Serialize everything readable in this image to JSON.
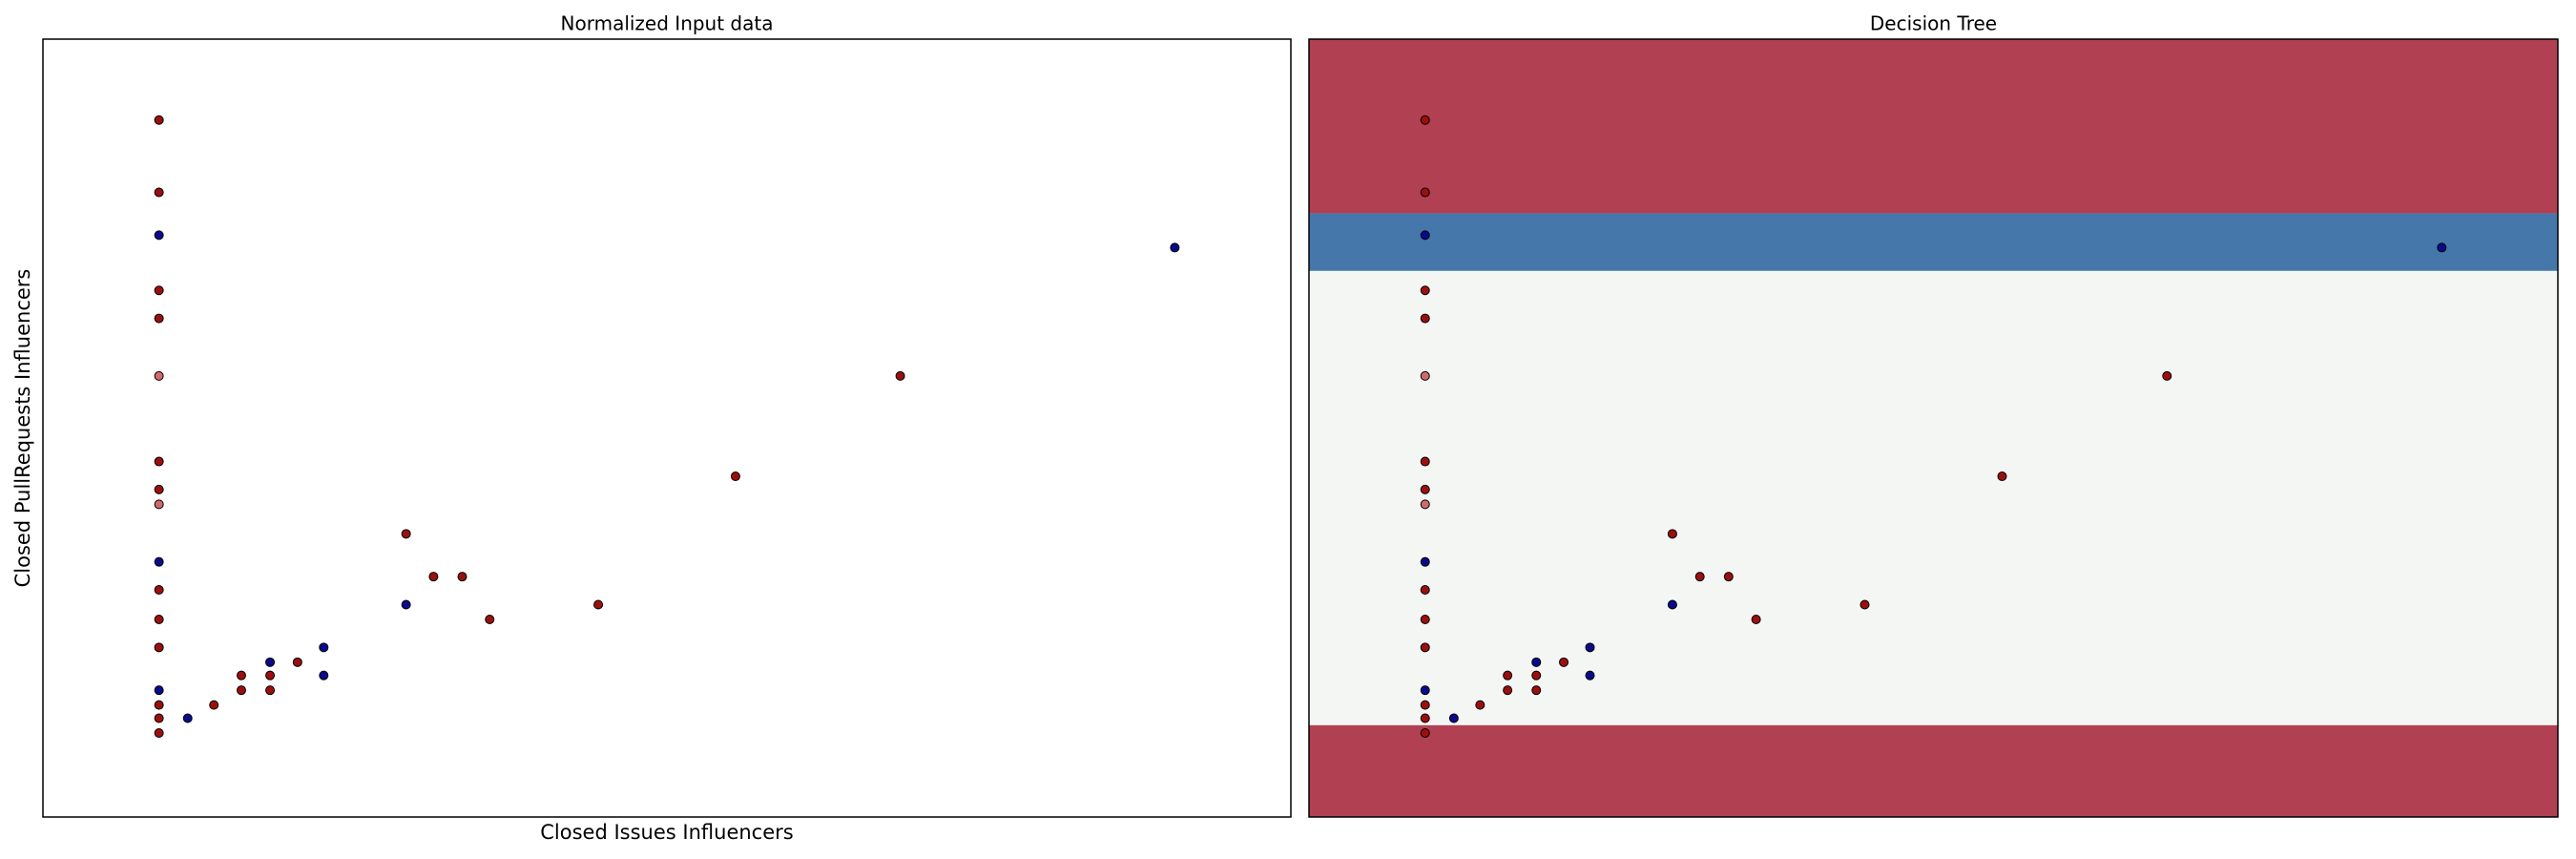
{
  "chart_data": [
    {
      "type": "scatter",
      "title": "Normalized Input data",
      "xlabel": "Closed Issues Influencers",
      "ylabel": "Closed PullRequests Influencers",
      "xlim": [
        0,
        100
      ],
      "ylim": [
        0,
        100
      ],
      "series": [
        {
          "color": "#9b0f0f",
          "x": [
            9.3,
            9.3,
            9.3,
            9.3,
            9.3,
            9.3,
            9.3,
            9.3,
            9.3,
            9.3,
            9.3,
            9.3,
            13.7,
            15.9,
            15.9,
            18.2,
            18.2,
            20.4,
            29.1,
            31.3,
            33.6,
            35.8,
            44.5,
            55.5,
            68.7
          ],
          "y": [
            89.6,
            80.3,
            67.7,
            64.1,
            45.7,
            42.1,
            29.2,
            25.4,
            21.8,
            14.4,
            12.7,
            10.8,
            14.4,
            18.2,
            16.3,
            18.2,
            16.3,
            19.9,
            36.4,
            30.9,
            30.9,
            25.4,
            27.3,
            43.8,
            56.7
          ]
        },
        {
          "color": "#d26a6a",
          "x": [
            9.3,
            9.3
          ],
          "y": [
            56.7,
            40.2
          ]
        },
        {
          "color": "#0a0a8c",
          "x": [
            9.3,
            9.3,
            9.3,
            11.6,
            18.2,
            22.5,
            22.5,
            29.1,
            90.7
          ],
          "y": [
            74.8,
            32.8,
            16.3,
            12.7,
            19.9,
            21.8,
            18.2,
            27.3,
            73.2
          ]
        }
      ]
    },
    {
      "type": "decision-regions",
      "title": "Decision Tree",
      "xlim": [
        0,
        100
      ],
      "ylim": [
        0,
        100
      ],
      "regions": [
        {
          "y0": 77.6,
          "y1": 100,
          "color": "#b14152"
        },
        {
          "y0": 70.2,
          "y1": 77.6,
          "color": "#4677ab"
        },
        {
          "y0": 11.8,
          "y1": 70.2,
          "color": "#f4f6f4"
        },
        {
          "y0": 0,
          "y1": 11.8,
          "color": "#b14152"
        }
      ],
      "series": [
        {
          "color": "#9b0f0f",
          "x": [
            9.3,
            9.3,
            9.3,
            9.3,
            9.3,
            9.3,
            9.3,
            9.3,
            9.3,
            9.3,
            9.3,
            9.3,
            13.7,
            15.9,
            15.9,
            18.2,
            18.2,
            20.4,
            29.1,
            31.3,
            33.6,
            35.8,
            44.5,
            55.5,
            68.7
          ],
          "y": [
            89.6,
            80.3,
            67.7,
            64.1,
            45.7,
            42.1,
            29.2,
            25.4,
            21.8,
            14.4,
            12.7,
            10.8,
            14.4,
            18.2,
            16.3,
            18.2,
            16.3,
            19.9,
            36.4,
            30.9,
            30.9,
            25.4,
            27.3,
            43.8,
            56.7
          ]
        },
        {
          "color": "#d26a6a",
          "x": [
            9.3,
            9.3
          ],
          "y": [
            56.7,
            40.2
          ]
        },
        {
          "color": "#0a0a8c",
          "x": [
            9.3,
            9.3,
            9.3,
            11.6,
            18.2,
            22.5,
            22.5,
            29.1,
            90.7
          ],
          "y": [
            74.8,
            32.8,
            16.3,
            12.7,
            19.9,
            21.8,
            18.2,
            27.3,
            73.2
          ]
        }
      ]
    }
  ]
}
